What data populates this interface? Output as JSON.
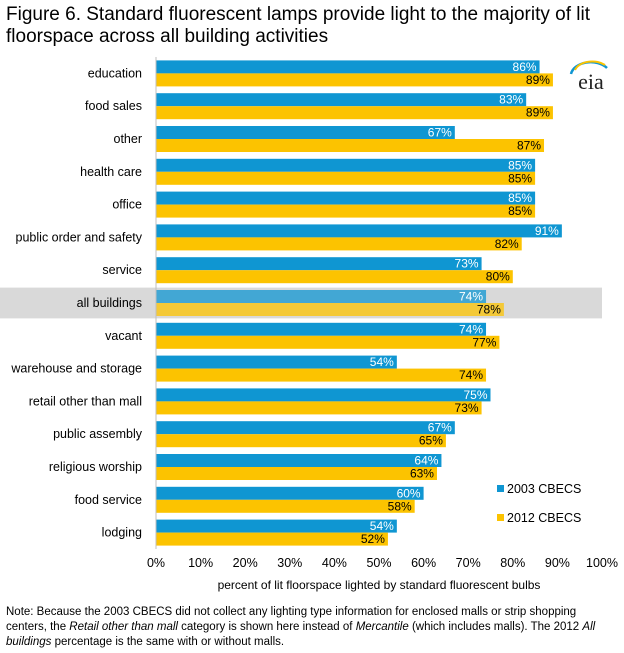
{
  "title": "Figure 6. Standard fluorescent lamps provide light to the majority of lit floorspace across all building activities",
  "logo_text": "eia",
  "note": {
    "part1": "Note: Because the 2003 CBECS did not collect any lighting type information for enclosed malls or strip shopping centers, the ",
    "italic1": "Retail other than mall",
    "part2": " category is shown here instead of ",
    "italic2": "Mercantile",
    "part3": " (which includes malls). The 2012 ",
    "italic3": "All buildings",
    "part4": " percentage is the same with or without malls."
  },
  "colors": {
    "series_2003": "#0f96d2",
    "series_2012": "#fcc300",
    "highlight_band": "#d9d9d9",
    "grid": "#d9d9d9"
  },
  "chart_data": {
    "type": "bar",
    "orientation": "horizontal",
    "xlabel": "percent of lit floorspace lighted by standard fluorescent bulbs",
    "xlim": [
      0,
      100
    ],
    "xticks": [
      "0%",
      "10%",
      "20%",
      "30%",
      "40%",
      "50%",
      "60%",
      "70%",
      "80%",
      "90%",
      "100%"
    ],
    "categories": [
      "education",
      "food sales",
      "other",
      "health care",
      "office",
      "public order and safety",
      "service",
      "all buildings",
      "vacant",
      "warehouse and storage",
      "retail other than mall",
      "public assembly",
      "religious worship",
      "food service",
      "lodging"
    ],
    "highlighted_category": "all buildings",
    "series": [
      {
        "name": "2003 CBECS",
        "values": [
          86,
          83,
          67,
          85,
          85,
          91,
          73,
          74,
          74,
          54,
          75,
          67,
          64,
          60,
          54
        ]
      },
      {
        "name": "2012 CBECS",
        "values": [
          89,
          89,
          87,
          85,
          85,
          82,
          80,
          78,
          77,
          74,
          73,
          65,
          63,
          58,
          52
        ]
      }
    ],
    "data_label_suffix": "%",
    "grid": false,
    "legend_position": "bottom-right"
  }
}
